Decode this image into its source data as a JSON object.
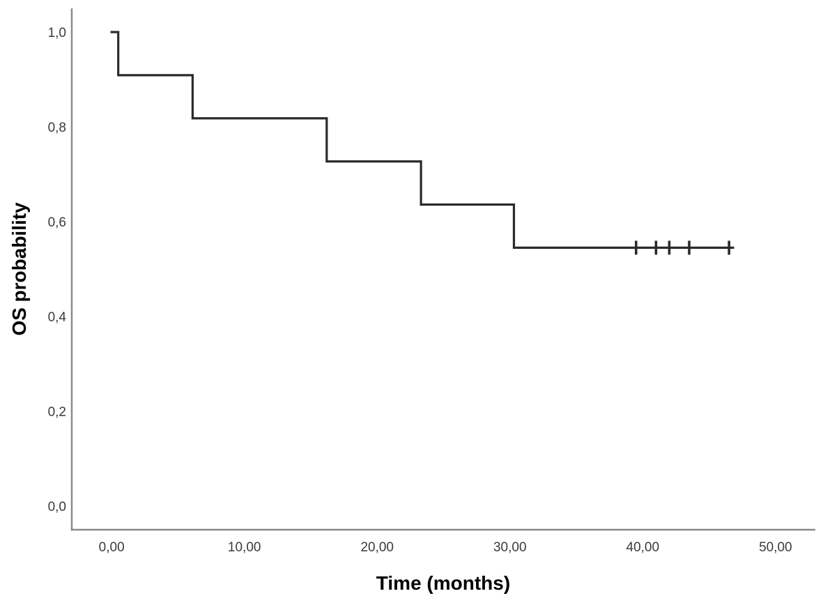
{
  "chart_data": {
    "type": "line",
    "subtype": "kaplan_meier_step",
    "title": "",
    "xlabel": "Time (months)",
    "ylabel": "OS probability",
    "xlim": [
      -3,
      53
    ],
    "ylim": [
      -0.05,
      1.05
    ],
    "grid": false,
    "legend": false,
    "decimal_separator": ",",
    "x_ticks": [
      {
        "value": 0,
        "label": "0,00"
      },
      {
        "value": 10,
        "label": "10,00"
      },
      {
        "value": 20,
        "label": "20,00"
      },
      {
        "value": 30,
        "label": "30,00"
      },
      {
        "value": 40,
        "label": "40,00"
      },
      {
        "value": 50,
        "label": "50,00"
      }
    ],
    "y_ticks": [
      {
        "value": 0.0,
        "label": "0,0"
      },
      {
        "value": 0.2,
        "label": "0,2"
      },
      {
        "value": 0.4,
        "label": "0,4"
      },
      {
        "value": 0.6,
        "label": "0,6"
      },
      {
        "value": 0.8,
        "label": "0,8"
      },
      {
        "value": 1.0,
        "label": "1,0"
      }
    ],
    "colors": {
      "curve": "#2b2b2b",
      "axis": "#8a8a8a",
      "tick_text": "#3a3a3a",
      "axis_title": "#000000",
      "background": "#ffffff"
    },
    "series": [
      {
        "name": "OS probability",
        "steps": [
          {
            "t": 0.0,
            "s": 1.0
          },
          {
            "t": 0.5,
            "s": 0.909
          },
          {
            "t": 6.1,
            "s": 0.818
          },
          {
            "t": 16.2,
            "s": 0.727
          },
          {
            "t": 23.3,
            "s": 0.636
          },
          {
            "t": 30.3,
            "s": 0.545
          }
        ],
        "end_time": 46.8,
        "censored": [
          {
            "t": 39.5,
            "s": 0.545
          },
          {
            "t": 41.0,
            "s": 0.545
          },
          {
            "t": 42.0,
            "s": 0.545
          },
          {
            "t": 43.5,
            "s": 0.545
          },
          {
            "t": 46.5,
            "s": 0.545
          }
        ]
      }
    ]
  }
}
